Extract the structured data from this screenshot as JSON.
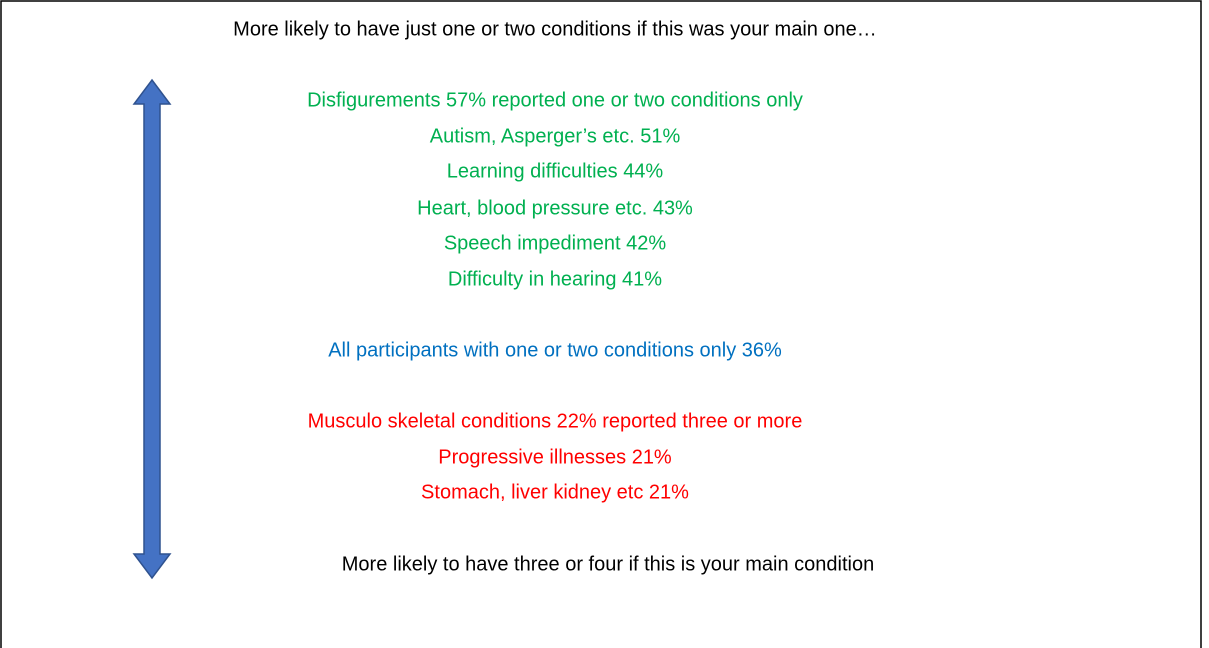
{
  "top_label": "More likely to have just one or two conditions if this was your main one…",
  "one_or_two": [
    "Disfigurements  57% reported one or two conditions only",
    "Autism, Asperger’s etc. 51%",
    "Learning difficulties 44%",
    "Heart, blood pressure etc. 43%",
    "Speech impediment 42%",
    "Difficulty in hearing 41%"
  ],
  "all_participants": "All participants with one or two conditions only 36%",
  "three_or_more": [
    "Musculo skeletal conditions 22% reported three or more",
    "Progressive illnesses 21%",
    "Stomach, liver kidney etc 21%"
  ],
  "bottom_label": "More likely to have three or four if this is your main condition"
}
